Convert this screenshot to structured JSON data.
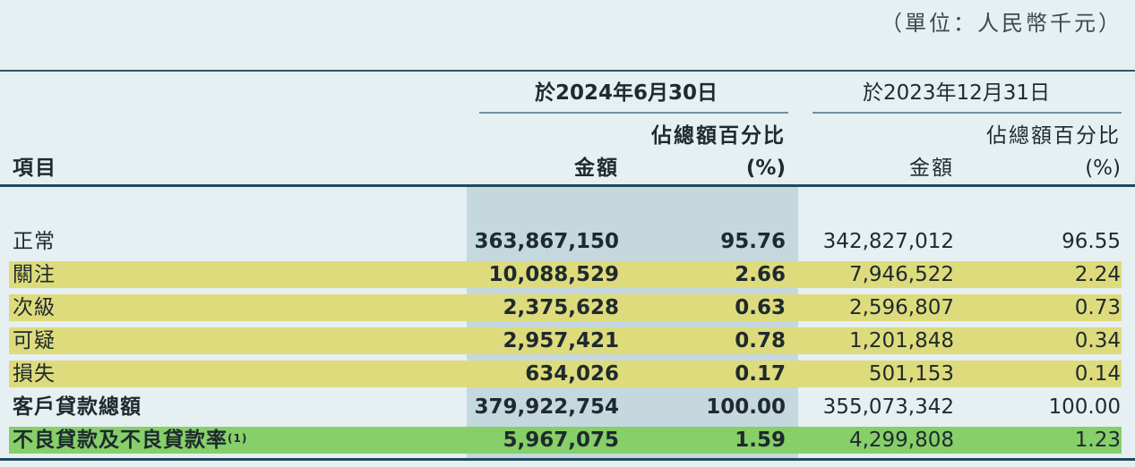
{
  "unit_label": "（單位：人民幣千元）",
  "header": {
    "item": "項目",
    "period_current": "於2024年6月30日",
    "period_prior": "於2023年12月31日",
    "amount": "金額",
    "pct_line1": "佔總額百分比",
    "pct_line2": "(%)"
  },
  "rows": [
    {
      "label": "正常",
      "amt_2024": "363,867,150",
      "pct_2024": "95.76",
      "amt_2023": "342,827,012",
      "pct_2023": "96.55"
    },
    {
      "label": "關注",
      "amt_2024": "10,088,529",
      "pct_2024": "2.66",
      "amt_2023": "7,946,522",
      "pct_2023": "2.24"
    },
    {
      "label": "次級",
      "amt_2024": "2,375,628",
      "pct_2024": "0.63",
      "amt_2023": "2,596,807",
      "pct_2023": "0.73"
    },
    {
      "label": "可疑",
      "amt_2024": "2,957,421",
      "pct_2024": "0.78",
      "amt_2023": "1,201,848",
      "pct_2023": "0.34"
    },
    {
      "label": "損失",
      "amt_2024": "634,026",
      "pct_2024": "0.17",
      "amt_2023": "501,153",
      "pct_2023": "0.14"
    }
  ],
  "total": {
    "label": "客戶貸款總額",
    "amt_2024": "379,922,754",
    "pct_2024": "100.00",
    "amt_2023": "355,073,342",
    "pct_2023": "100.00"
  },
  "npl": {
    "label": "不良貸款及不良貸款率",
    "note": "(1)",
    "amt_2024": "5,967,075",
    "pct_2024": "1.59",
    "amt_2023": "4,299,808",
    "pct_2023": "1.23"
  },
  "colors": {
    "background": "#e6f0f2",
    "current_column_shade": "#c4d8de",
    "highlight_yellow": "#dedb7c",
    "highlight_green": "#86cf69",
    "rule": "#1f4a5a"
  }
}
